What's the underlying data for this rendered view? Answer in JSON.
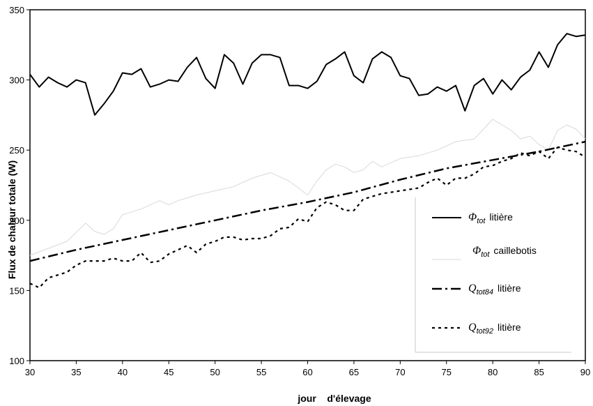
{
  "chart_data": {
    "type": "line",
    "xlabel": "jour    d'élevage",
    "ylabel": "Flux de chaleur totale (W)",
    "xlim": [
      30,
      90
    ],
    "ylim": [
      100,
      350
    ],
    "xticks": [
      "30",
      "35",
      "40",
      "45",
      "50",
      "55",
      "60",
      "65",
      "70",
      "75",
      "80",
      "85",
      "90"
    ],
    "yticks": [
      "100",
      "150",
      "200",
      "250",
      "300",
      "350"
    ],
    "grid": false,
    "legend_position": "bottom-right",
    "series": [
      {
        "name": "Φtot litière",
        "symbol": "Φ",
        "subscript": "tot",
        "suffix": "litière",
        "style": "solid-thick",
        "color": "#000000",
        "x": [
          30,
          31,
          32,
          33,
          34,
          35,
          36,
          37,
          38,
          39,
          40,
          41,
          42,
          43,
          44,
          45,
          46,
          47,
          48,
          49,
          50,
          51,
          52,
          53,
          54,
          55,
          56,
          57,
          58,
          59,
          60,
          61,
          62,
          63,
          64,
          65,
          66,
          67,
          68,
          69,
          70,
          71,
          72,
          73,
          74,
          75,
          76,
          77,
          78,
          79,
          80,
          81,
          82,
          83,
          84,
          85,
          86,
          87,
          88,
          89,
          90
        ],
        "values": [
          304,
          295,
          302,
          298,
          295,
          300,
          298,
          275,
          283,
          292,
          305,
          304,
          308,
          295,
          297,
          300,
          299,
          309,
          316,
          301,
          294,
          318,
          312,
          297,
          312,
          318,
          318,
          316,
          296,
          296,
          294,
          299,
          311,
          315,
          320,
          303,
          298,
          315,
          320,
          316,
          303,
          301,
          289,
          290,
          295,
          292,
          296,
          278,
          296,
          301,
          290,
          300,
          293,
          302,
          307,
          320,
          309,
          325,
          333,
          331,
          332
        ]
      },
      {
        "name": "Φtot caillebotis",
        "symbol": "Φ",
        "subscript": "tot",
        "suffix": "caillebotis",
        "style": "solid-thin",
        "color": "#d9d9d9",
        "x": [
          30,
          32,
          34,
          36,
          37,
          38,
          39,
          40,
          42,
          44,
          45,
          46,
          48,
          50,
          52,
          54,
          56,
          58,
          60,
          61,
          62,
          63,
          64,
          65,
          66,
          67,
          68,
          70,
          72,
          74,
          76,
          78,
          80,
          82,
          83,
          84,
          85,
          86,
          87,
          88,
          89,
          90
        ],
        "values": [
          175,
          180,
          185,
          198,
          192,
          190,
          194,
          204,
          208,
          214,
          211,
          214,
          218,
          221,
          224,
          230,
          234,
          228,
          218,
          228,
          236,
          240,
          238,
          234,
          236,
          242,
          238,
          244,
          246,
          250,
          256,
          258,
          272,
          264,
          258,
          260,
          254,
          250,
          264,
          268,
          265,
          258
        ]
      },
      {
        "name": "Qtot84 litière",
        "symbol": "Q",
        "subscript": "tot84",
        "suffix": "litière",
        "style": "dash-dot",
        "color": "#000000",
        "x": [
          30,
          35,
          40,
          45,
          50,
          55,
          60,
          65,
          70,
          75,
          80,
          85,
          90
        ],
        "values": [
          171,
          179,
          186,
          193,
          200,
          207,
          213,
          220,
          229,
          237,
          243,
          249,
          256
        ]
      },
      {
        "name": "Qtot92 litière",
        "symbol": "Q",
        "subscript": "tot92",
        "suffix": "litière",
        "style": "dotted",
        "color": "#000000",
        "x": [
          30,
          31,
          32,
          33,
          34,
          35,
          36,
          37,
          38,
          39,
          40,
          41,
          42,
          43,
          44,
          45,
          46,
          47,
          48,
          49,
          50,
          51,
          52,
          53,
          54,
          55,
          56,
          57,
          58,
          59,
          60,
          61,
          62,
          63,
          64,
          65,
          66,
          67,
          68,
          69,
          70,
          71,
          72,
          73,
          74,
          75,
          76,
          77,
          78,
          79,
          80,
          81,
          82,
          83,
          84,
          85,
          86,
          87,
          88,
          89,
          90
        ],
        "values": [
          155,
          152,
          159,
          161,
          163,
          168,
          171,
          171,
          171,
          173,
          171,
          171,
          177,
          170,
          171,
          176,
          179,
          182,
          177,
          183,
          185,
          188,
          188,
          186,
          187,
          187,
          189,
          194,
          195,
          201,
          199,
          209,
          213,
          211,
          207,
          207,
          215,
          217,
          219,
          220,
          221,
          222,
          223,
          227,
          230,
          225,
          230,
          230,
          233,
          238,
          239,
          242,
          244,
          248,
          246,
          249,
          244,
          252,
          250,
          249,
          245
        ]
      }
    ]
  }
}
